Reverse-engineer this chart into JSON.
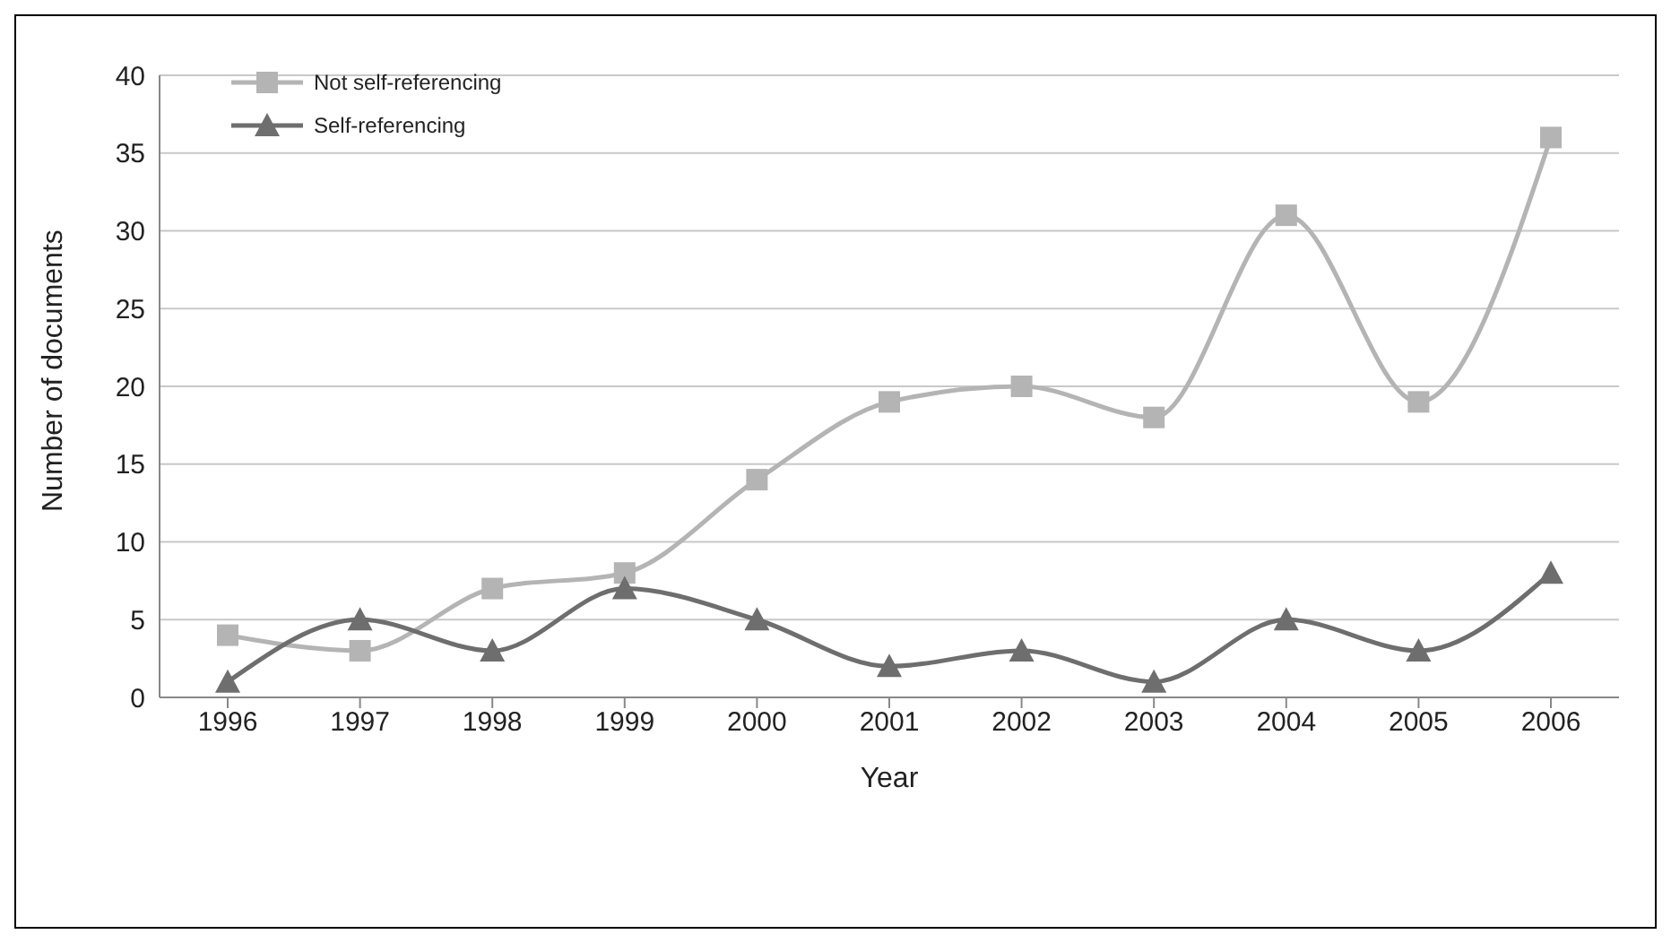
{
  "chart_data": {
    "type": "line",
    "xlabel": "Year",
    "ylabel": "Number of documents",
    "categories": [
      "1996",
      "1997",
      "1998",
      "1999",
      "2000",
      "2001",
      "2002",
      "2003",
      "2004",
      "2005",
      "2006"
    ],
    "series": [
      {
        "name": "Not self-referencing",
        "color": "#b4b4b4",
        "marker": "square",
        "values": [
          4,
          3,
          7,
          8,
          14,
          19,
          20,
          18,
          31,
          19,
          36
        ]
      },
      {
        "name": "Self-referencing",
        "color": "#6e6e6e",
        "marker": "triangle",
        "values": [
          1,
          5,
          3,
          7,
          5,
          2,
          3,
          1,
          5,
          3,
          8
        ]
      }
    ],
    "ylim": [
      0,
      40
    ],
    "yticks": [
      0,
      5,
      10,
      15,
      20,
      25,
      30,
      35,
      40
    ],
    "grid": "y",
    "legend": "top left"
  }
}
